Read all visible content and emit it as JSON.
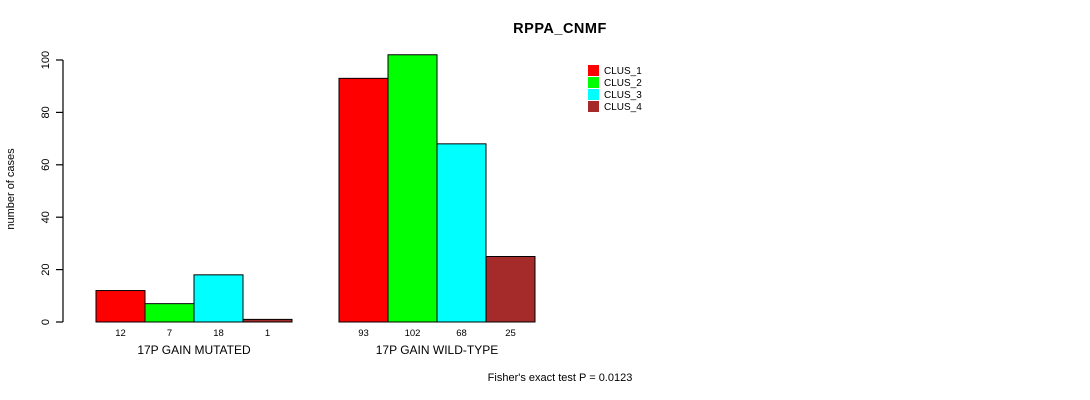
{
  "title": "RPPA_CNMF",
  "footer": "Fisher's exact test P = 0.0123",
  "chart_data": {
    "type": "bar",
    "title": "RPPA_CNMF",
    "xlabel": "",
    "ylabel": "number of cases",
    "ylim": [
      0,
      100
    ],
    "yticks": [
      0,
      20,
      40,
      60,
      80,
      100
    ],
    "grid": false,
    "legend_position": "top-right",
    "categories": [
      "17P GAIN MUTATED",
      "17P GAIN WILD-TYPE"
    ],
    "series": [
      {
        "name": "CLUS_1",
        "color": "#ff0000",
        "values": [
          12,
          93
        ]
      },
      {
        "name": "CLUS_2",
        "color": "#00ff00",
        "values": [
          7,
          102
        ]
      },
      {
        "name": "CLUS_3",
        "color": "#00ffff",
        "values": [
          18,
          68
        ]
      },
      {
        "name": "CLUS_4",
        "color": "#a52a2a",
        "values": [
          1,
          25
        ]
      }
    ],
    "bar_value_labels": [
      [
        12,
        7,
        18,
        1
      ],
      [
        93,
        102,
        68,
        25
      ]
    ],
    "annotation": "Fisher's exact test P = 0.0123",
    "bar_border_color": "#000000",
    "axis_color": "#000000"
  }
}
